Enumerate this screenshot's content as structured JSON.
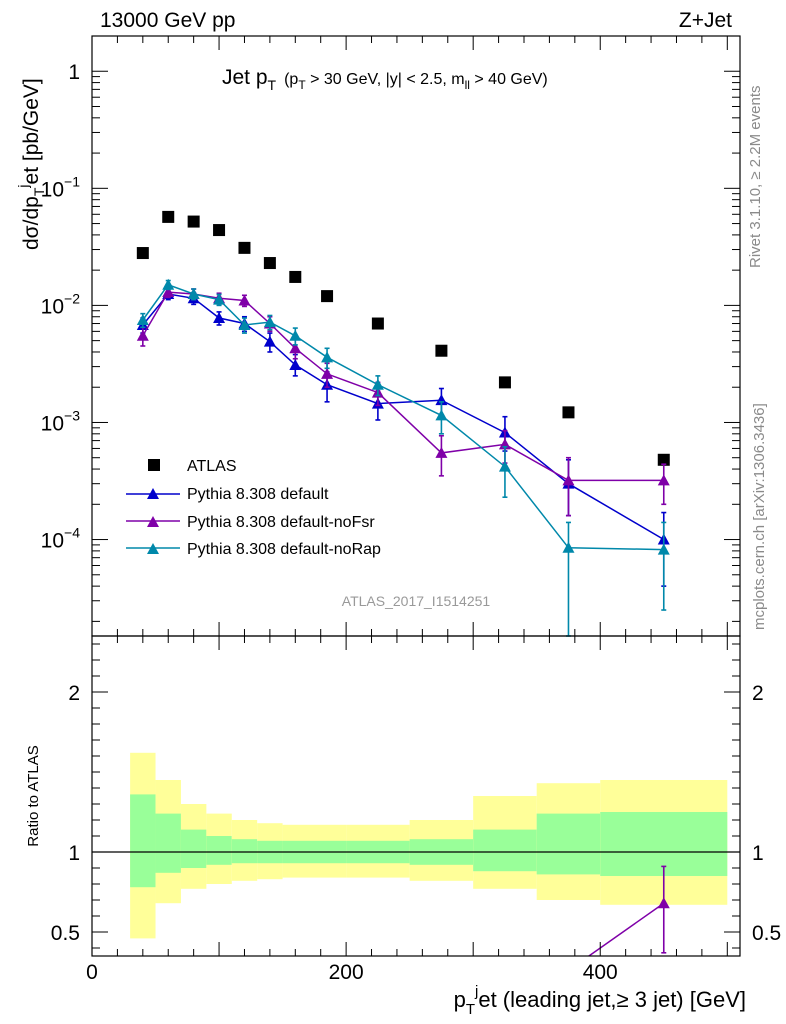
{
  "header": {
    "energy_label": "13000 GeV pp",
    "process_label": "Z+Jet"
  },
  "side": {
    "rivet_label": "Rivet 3.1.10, ≥ 2.2M events",
    "mcplots_label": "mcplots.cern.ch [arXiv:1306.3436]"
  },
  "colors": {
    "atlas": "#000000",
    "default": "#0000cc",
    "noFsr": "#7f00a8",
    "noRap": "#0088aa",
    "band_inner": "#99ff99",
    "band_outer": "#ffff99"
  },
  "chart_data": [
    {
      "type": "scatter",
      "title": "Jet p_T (p_T > 30 GeV, |y| < 2.5, m_ll > 40 GeV)",
      "title_parts": {
        "main": "Jet p",
        "main_sub": "T",
        "open": "(p",
        "open_sub": "T",
        "cut_text": " > 30 GeV, |y| < 2.5, m",
        "cut_sub": "ll",
        "close": " > 40 GeV)"
      },
      "ylabel_parts": {
        "a": "dσ/dp",
        "a_sub": "T",
        "a_sup": "j",
        "b": "et [pb/GeV]"
      },
      "yscale": "log",
      "ylim": [
        1.5e-05,
        2.0
      ],
      "xlim": [
        0,
        510
      ],
      "y_ticks": [
        {
          "value": 1,
          "base": "1",
          "exp": ""
        },
        {
          "value": 0.1,
          "base": "10",
          "exp": "−1"
        },
        {
          "value": 0.01,
          "base": "10",
          "exp": "−2"
        },
        {
          "value": 0.001,
          "base": "10",
          "exp": "−3"
        },
        {
          "value": 0.0001,
          "base": "10",
          "exp": "−4"
        }
      ],
      "watermark": "ATLAS_2017_I1514251",
      "legend_position": "bottom-left",
      "x_bin_centers": [
        40,
        60,
        80,
        100,
        120,
        140,
        160,
        185,
        225,
        275,
        325,
        375,
        450
      ],
      "series": [
        {
          "name": "ATLAS",
          "marker": "square",
          "color": "#000000",
          "values": [
            0.028,
            0.057,
            0.052,
            0.044,
            0.031,
            0.023,
            0.0175,
            0.012,
            0.007,
            0.0041,
            0.0022,
            0.00122,
            0.00048
          ],
          "err_lo": [],
          "err_hi": []
        },
        {
          "name": "Pythia 8.308 default",
          "marker": "triangle",
          "color": "#0000cc",
          "values": [
            0.0068,
            0.0125,
            0.0115,
            0.0078,
            0.007,
            0.0049,
            0.0031,
            0.0021,
            0.00145,
            0.00155,
            0.00082,
            0.0003,
            0.0001
          ],
          "err_lo": [
            0.0058,
            0.0112,
            0.0102,
            0.0068,
            0.006,
            0.004,
            0.0025,
            0.0015,
            0.00105,
            0.00115,
            0.00057,
            0.00016,
            4e-05
          ],
          "err_hi": [
            0.0078,
            0.0138,
            0.0128,
            0.0088,
            0.008,
            0.0058,
            0.0038,
            0.0027,
            0.00185,
            0.00195,
            0.00112,
            0.00048,
            0.00017
          ]
        },
        {
          "name": "Pythia 8.308 default-noFsr",
          "marker": "triangle",
          "color": "#7f00a8",
          "values": [
            0.0055,
            0.013,
            0.0125,
            0.0115,
            0.011,
            0.007,
            0.0043,
            0.0026,
            0.0018,
            0.00055,
            0.00065,
            0.00032,
            0.00032
          ],
          "err_lo": [
            0.0045,
            0.0117,
            0.0112,
            0.0103,
            0.0098,
            0.006,
            0.0035,
            0.002,
            0.0014,
            0.00035,
            0.00045,
            0.00016,
            0.0002
          ],
          "err_hi": [
            0.0065,
            0.0143,
            0.0138,
            0.0127,
            0.0122,
            0.008,
            0.0051,
            0.0032,
            0.0022,
            0.00077,
            0.00085,
            0.0005,
            0.00044
          ]
        },
        {
          "name": "Pythia 8.308 default-noRap",
          "marker": "triangle",
          "color": "#0088aa",
          "values": [
            0.0075,
            0.015,
            0.0125,
            0.0112,
            0.0068,
            0.0072,
            0.0055,
            0.0036,
            0.0021,
            0.00115,
            0.00042,
            8.5e-05,
            8.2e-05
          ],
          "err_lo": [
            0.0065,
            0.0137,
            0.0112,
            0.01,
            0.0058,
            0.0062,
            0.0046,
            0.0029,
            0.0017,
            0.0008,
            0.00023,
            1.2e-05,
            2.5e-05
          ],
          "err_hi": [
            0.0085,
            0.0163,
            0.0138,
            0.0124,
            0.0078,
            0.0082,
            0.0064,
            0.0043,
            0.0025,
            0.0015,
            0.00062,
            0.00014,
            0.00014
          ]
        }
      ]
    },
    {
      "type": "scatter",
      "ylabel": "Ratio to ATLAS",
      "xlabel_parts": {
        "a": "p",
        "a_sub": "T",
        "a_sup": "j",
        "b": "et (leading jet,≥ 3 jet) [GeV]"
      },
      "xlim": [
        0,
        510
      ],
      "ylim": [
        0.35,
        2.35
      ],
      "x_ticks": [
        0,
        200,
        400
      ],
      "y_ticks": [
        0.5,
        1,
        2
      ],
      "bin_edges": [
        30,
        50,
        70,
        90,
        110,
        130,
        150,
        170,
        200,
        250,
        300,
        350,
        400,
        500
      ],
      "band_inner_lo": [
        0.78,
        0.87,
        0.9,
        0.92,
        0.93,
        0.93,
        0.93,
        0.93,
        0.93,
        0.92,
        0.88,
        0.86,
        0.85
      ],
      "band_inner_hi": [
        1.36,
        1.24,
        1.14,
        1.1,
        1.08,
        1.07,
        1.07,
        1.07,
        1.07,
        1.08,
        1.14,
        1.24,
        1.25
      ],
      "band_outer_lo": [
        0.46,
        0.68,
        0.77,
        0.8,
        0.82,
        0.83,
        0.84,
        0.84,
        0.84,
        0.82,
        0.77,
        0.7,
        0.67
      ],
      "band_outer_hi": [
        1.62,
        1.45,
        1.3,
        1.24,
        1.2,
        1.18,
        1.17,
        1.17,
        1.17,
        1.2,
        1.35,
        1.43,
        1.45
      ],
      "visible_ratio_point": {
        "series": "Pythia 8.308 default-noFsr",
        "x": 450,
        "value": 0.68,
        "err_lo": 0.37,
        "err_hi": 0.91,
        "line_from": {
          "x": 375,
          "value": 0.26
        }
      }
    }
  ]
}
